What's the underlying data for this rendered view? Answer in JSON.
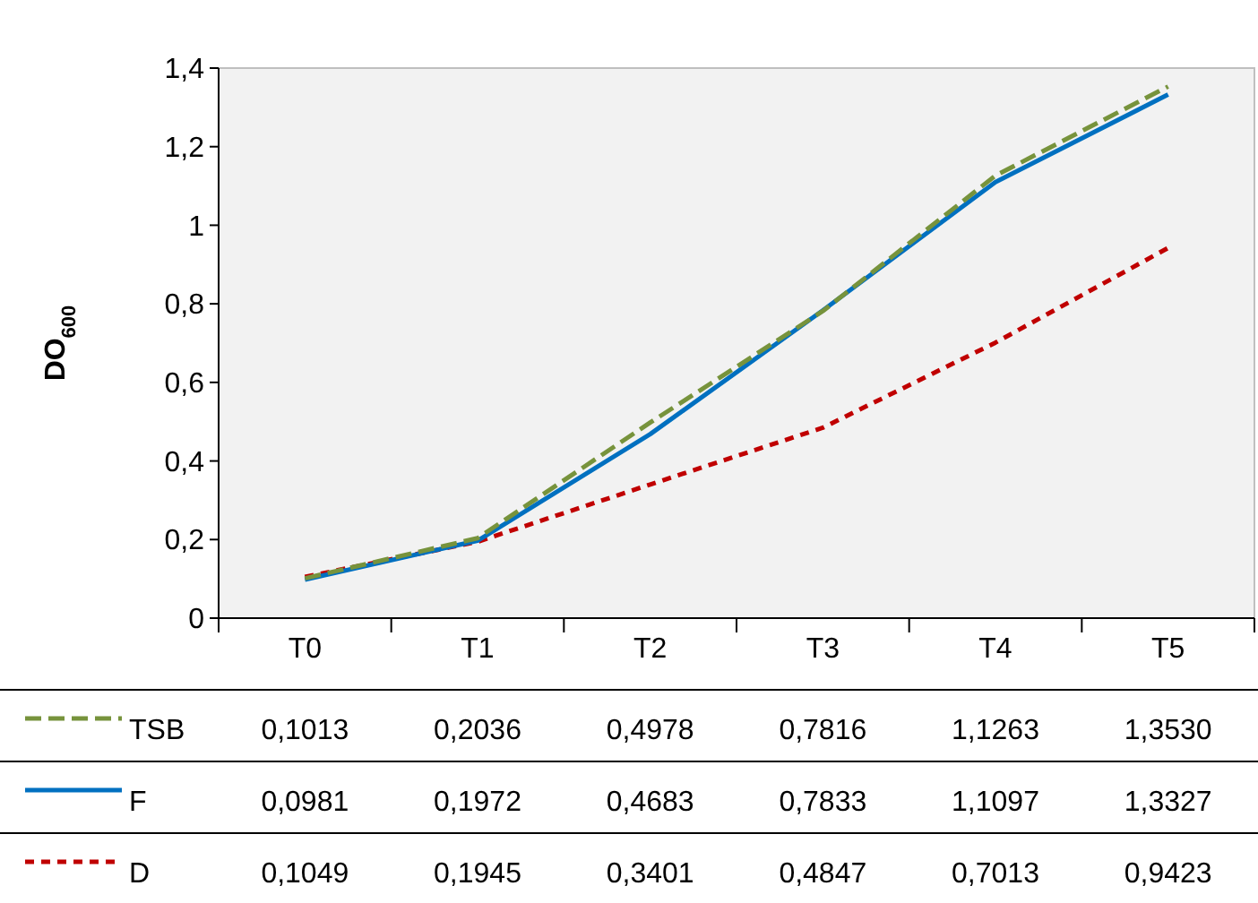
{
  "chart_data": {
    "type": "line",
    "ylabel": "DO$_{600}$",
    "categories": [
      "T0",
      "T1",
      "T2",
      "T3",
      "T4",
      "T5"
    ],
    "series": [
      {
        "name": "TSB",
        "color": "#77933c",
        "line_style": "dashed",
        "values": [
          0.1013,
          0.2036,
          0.4978,
          0.7816,
          1.1263,
          1.353
        ],
        "value_labels": [
          "0,1013",
          "0,2036",
          "0,4978",
          "0,7816",
          "1,1263",
          "1,3530"
        ]
      },
      {
        "name": "F",
        "color": "#0070c0",
        "line_style": "solid",
        "values": [
          0.0981,
          0.1972,
          0.4683,
          0.7833,
          1.1097,
          1.3327
        ],
        "value_labels": [
          "0,0981",
          "0,1972",
          "0,4683",
          "0,7833",
          "1,1097",
          "1,3327"
        ]
      },
      {
        "name": "D",
        "color": "#c00000",
        "line_style": "dotted",
        "values": [
          0.1049,
          0.1945,
          0.3401,
          0.4847,
          0.7013,
          0.9423
        ],
        "value_labels": [
          "0,1049",
          "0,1945",
          "0,3401",
          "0,4847",
          "0,7013",
          "0,9423"
        ]
      }
    ],
    "ylim": [
      0,
      1.4
    ],
    "yticks": [
      0,
      {
        "value": 0.2,
        "label": "0,2"
      },
      {
        "value": 0.4,
        "label": "0,4"
      },
      {
        "value": 0.6,
        "label": "0,6"
      },
      {
        "value": 0.8,
        "label": "0,8"
      },
      1,
      {
        "value": 1.2,
        "label": "1,2"
      },
      {
        "value": 1.4,
        "label": "1,4"
      }
    ],
    "grid": false,
    "legend": "bottom"
  }
}
